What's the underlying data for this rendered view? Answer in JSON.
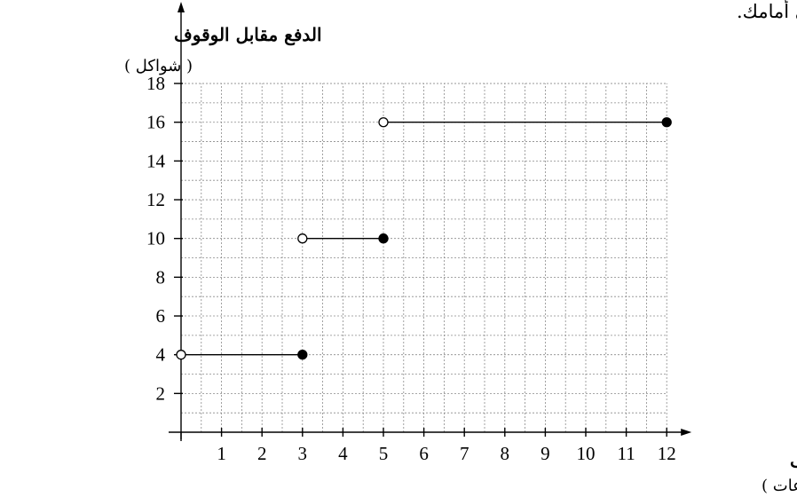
{
  "header_text": "موصوفة في الرسم البياني الذي أمامك.",
  "chart_data": {
    "type": "line",
    "title": "",
    "xlabel": "مدّة الوقوف",
    "xlabel_unit": "( ساعات )",
    "ylabel": "الدفع مقابل الوقوف",
    "ylabel_unit": "( شواكل )",
    "xlim": [
      0,
      12
    ],
    "ylim": [
      0,
      18
    ],
    "x_ticks": [
      1,
      2,
      3,
      4,
      5,
      6,
      7,
      8,
      9,
      10,
      11,
      12
    ],
    "y_ticks": [
      2,
      4,
      6,
      8,
      10,
      12,
      14,
      16,
      18
    ],
    "grid": true,
    "grid_step_x": 0.5,
    "grid_step_y": 1,
    "series": [
      {
        "segments": [
          {
            "x0": 0,
            "x1": 3,
            "y": 4,
            "start": "open",
            "end": "closed"
          },
          {
            "x0": 3,
            "x1": 5,
            "y": 10,
            "start": "open",
            "end": "closed"
          },
          {
            "x0": 5,
            "x1": 12,
            "y": 16,
            "start": "open",
            "end": "closed"
          }
        ]
      }
    ]
  }
}
